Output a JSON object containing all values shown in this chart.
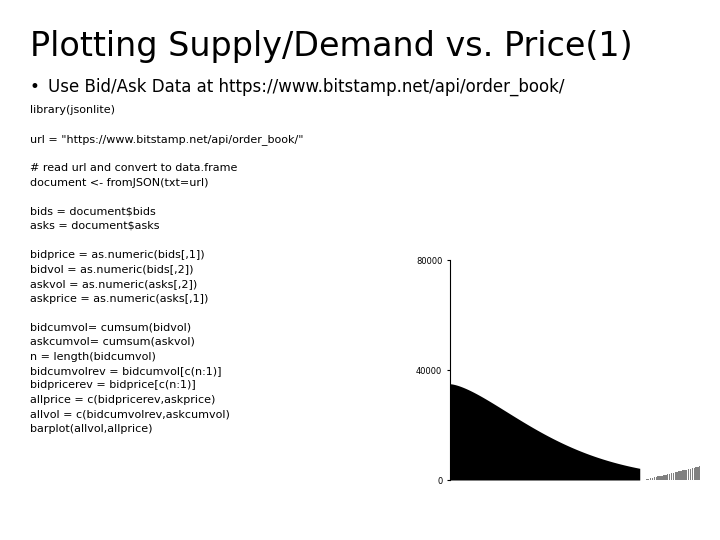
{
  "title": "Plotting Supply/Demand vs. Price(1)",
  "bullet": "Use Bid/Ask Data at https://www.bitstamp.net/api/order_book/",
  "code_lines": [
    "library(jsonlite)",
    "",
    "url = \"https://www.bitstamp.net/api/order_book/\"",
    "",
    "# read url and convert to data.frame",
    "document <- fromJSON(txt=url)",
    "",
    "bids = document$bids",
    "asks = document$asks",
    "",
    "bidprice = as.numeric(bids[,1])",
    "bidvol = as.numeric(bids[,2])",
    "askvol = as.numeric(asks[,2])",
    "askprice = as.numeric(asks[,1])",
    "",
    "bidcumvol= cumsum(bidvol)",
    "askcumvol= cumsum(askvol)",
    "n = length(bidcumvol)",
    "bidcumvolrev = bidcumvol[c(n:1)]",
    "bidpricerev = bidprice[c(n:1)]",
    "allprice = c(bidpricerev,askprice)",
    "allvol = c(bidcumvolrev,askcumvol)",
    "barplot(allvol,allprice)"
  ],
  "title_fontsize": 24,
  "bullet_fontsize": 12,
  "code_fontsize": 8,
  "background_color": "#ffffff",
  "text_color": "#000000",
  "title_font": "DejaVu Sans",
  "code_font": "Courier New"
}
